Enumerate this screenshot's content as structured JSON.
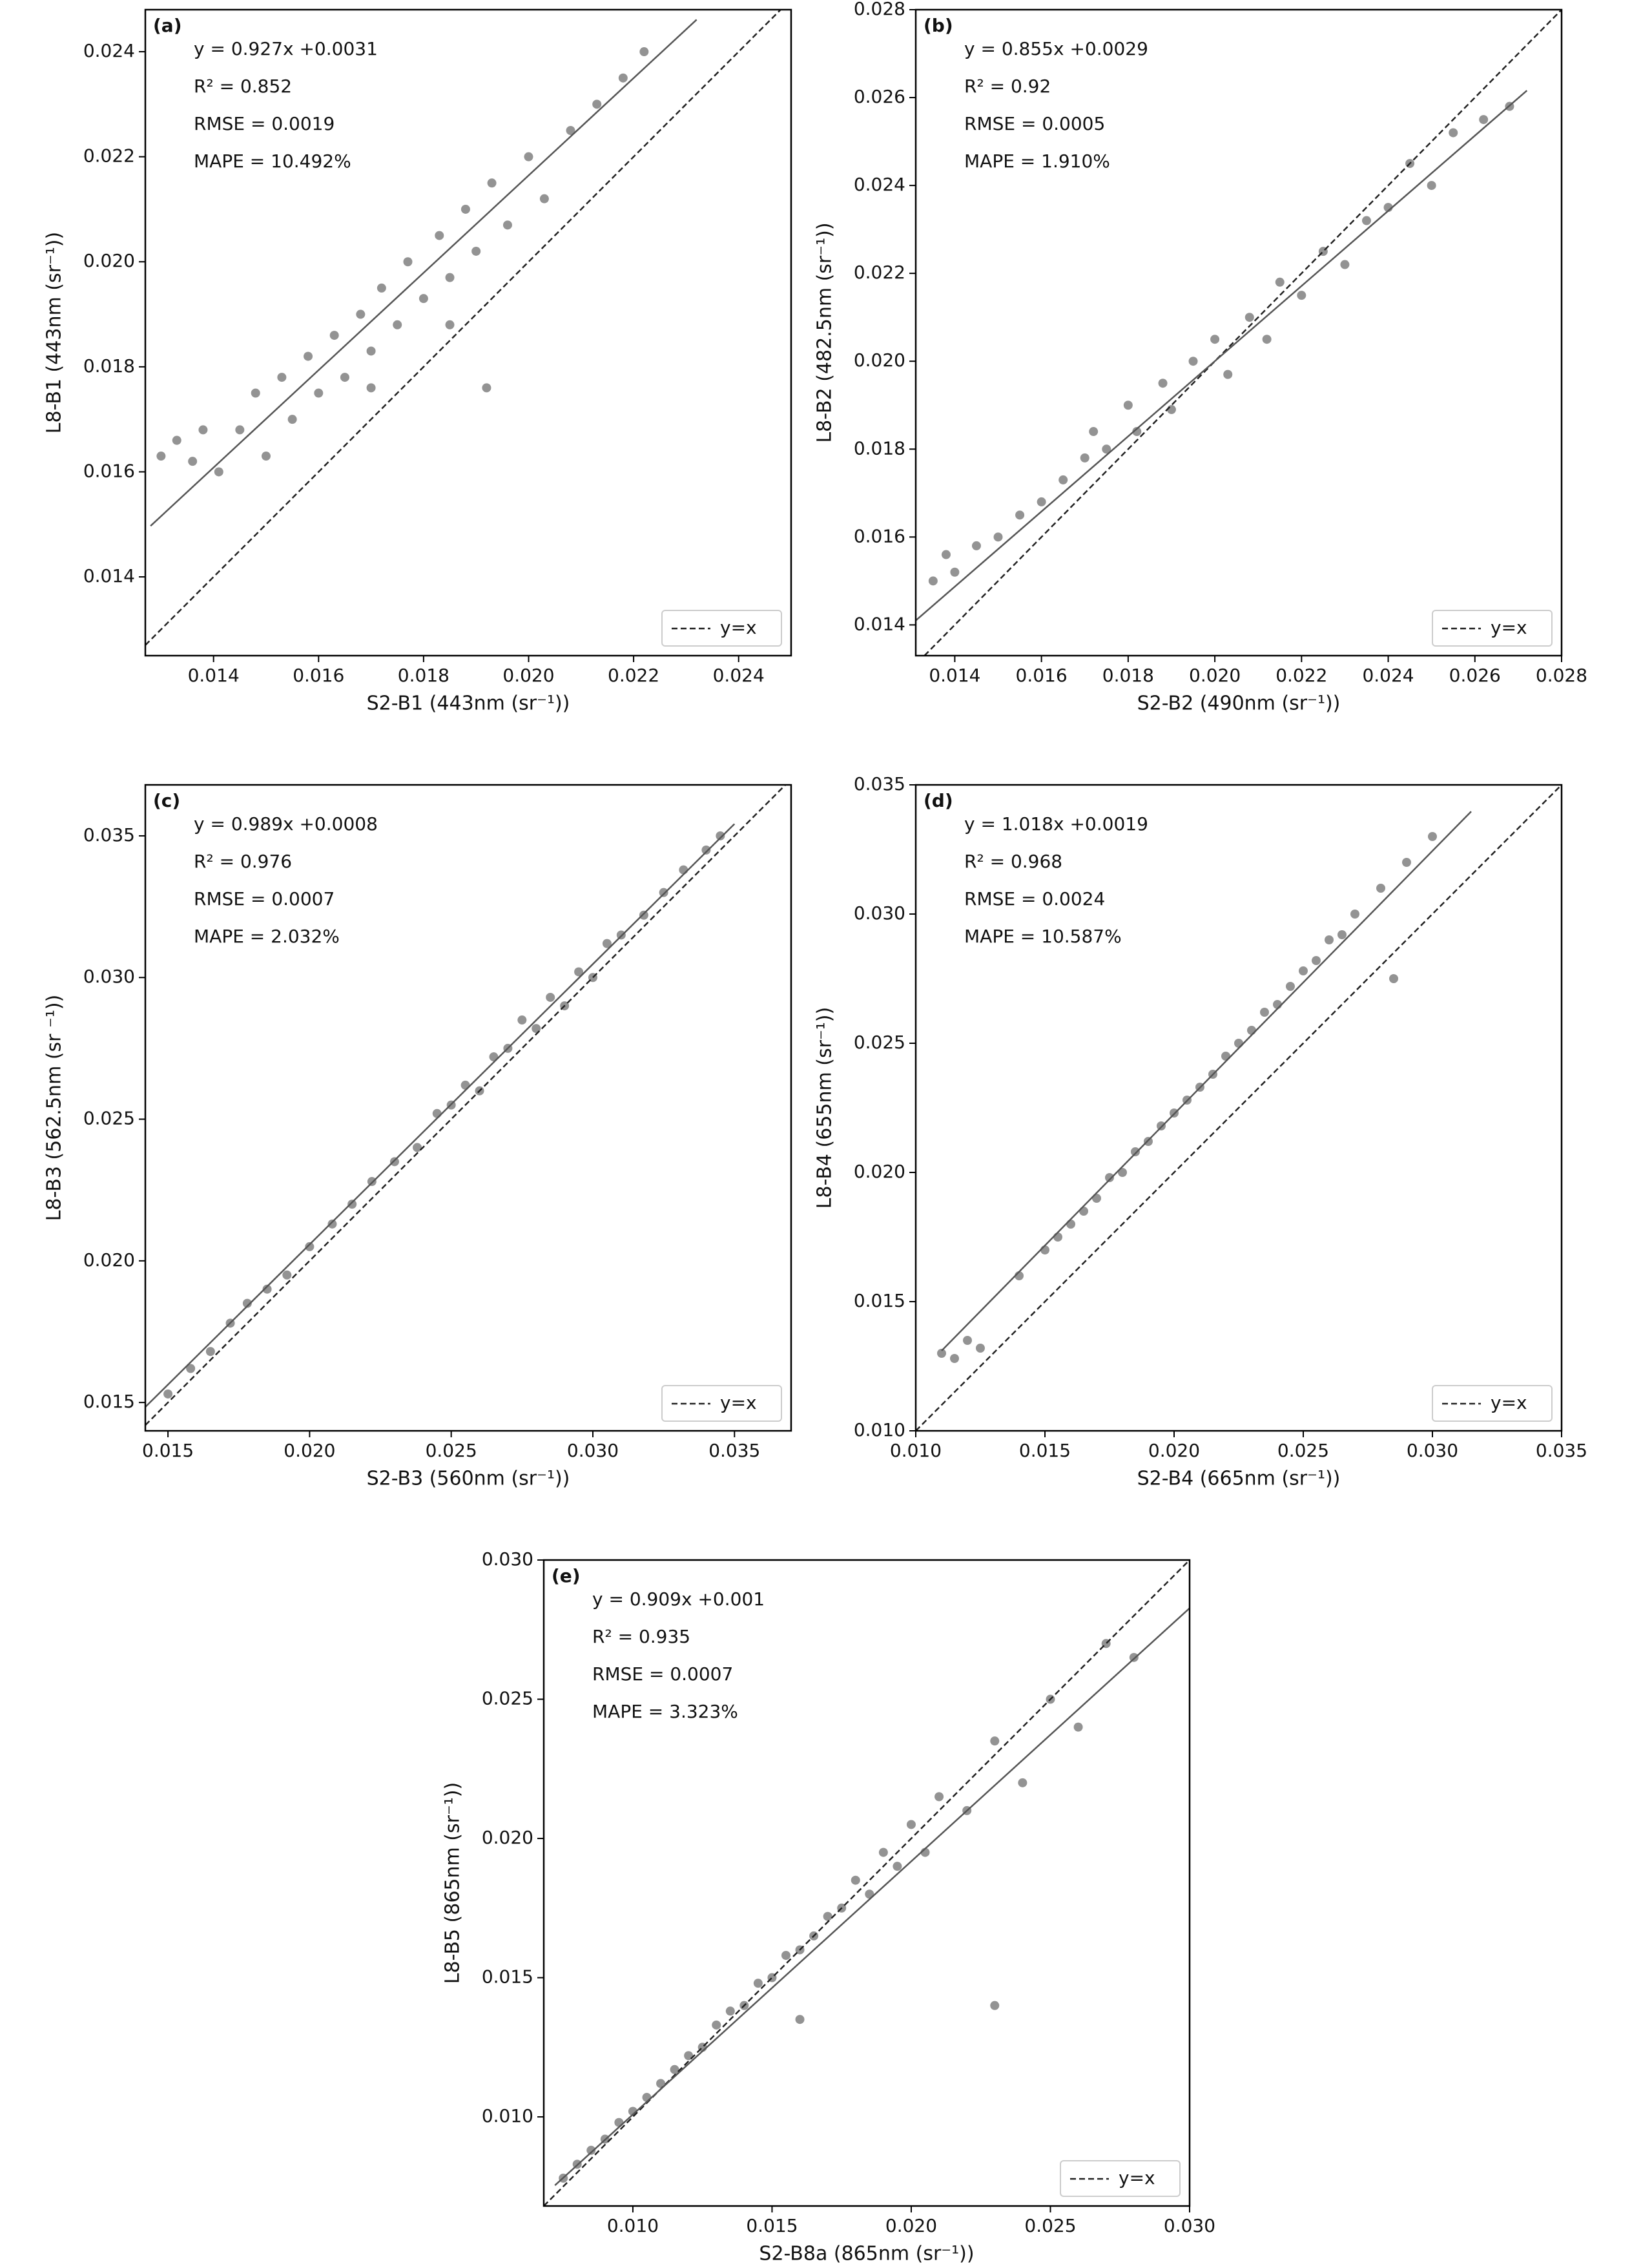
{
  "chart_data": [
    {
      "type": "scatter",
      "label": "(a)",
      "annotations": [
        "y = 0.927x +0.0031",
        "R² = 0.852",
        "RMSE = 0.0019",
        "MAPE = 10.492%"
      ],
      "xlabel": "S2-B1 (443nm (sr⁻¹))",
      "ylabel": "L8-B1 (443nm (sr⁻¹))",
      "xlim": [
        0.0127,
        0.025
      ],
      "ylim": [
        0.0125,
        0.0248
      ],
      "xticks": [
        0.014,
        0.016,
        0.018,
        {
          "value": 0.02,
          "label": "0.020"
        },
        0.022,
        0.024
      ],
      "yticks": [
        0.014,
        0.016,
        0.018,
        {
          "value": 0.02,
          "label": "0.020"
        },
        0.022,
        0.024
      ],
      "color": "#808080",
      "legend": "lower right",
      "x": [
        0.013,
        0.0133,
        0.0136,
        0.0138,
        0.0141,
        0.0145,
        0.0148,
        0.015,
        0.0153,
        0.0155,
        0.0158,
        0.016,
        0.0163,
        0.0165,
        0.0168,
        0.017,
        0.0172,
        0.0175,
        0.0177,
        0.018,
        0.0183,
        0.0185,
        0.0188,
        0.019,
        0.0193,
        0.0196,
        0.02,
        0.0203,
        0.0208,
        0.0213,
        0.0218,
        0.0222,
        0.017,
        0.0185,
        0.0192
      ],
      "y": [
        0.0163,
        0.0166,
        0.0162,
        0.0168,
        0.016,
        0.0168,
        0.0175,
        0.0163,
        0.0178,
        0.017,
        0.0182,
        0.0175,
        0.0186,
        0.0178,
        0.019,
        0.0183,
        0.0195,
        0.0188,
        0.02,
        0.0193,
        0.0205,
        0.0197,
        0.021,
        0.0202,
        0.0215,
        0.0207,
        0.022,
        0.0212,
        0.0225,
        0.023,
        0.0235,
        0.024,
        0.0176,
        0.0188,
        0.0176
      ],
      "fit": {
        "x": [
          0.0128,
          0.0232
        ],
        "y": [
          0.01497,
          0.02461
        ]
      },
      "identity": {
        "name": "y=x",
        "x": [
          0.0127,
          0.0248
        ],
        "y": [
          0.0127,
          0.0248
        ]
      }
    },
    {
      "type": "scatter",
      "label": "(b)",
      "annotations": [
        "y = 0.855x +0.0029",
        "R² = 0.92",
        "RMSE = 0.0005",
        "MAPE = 1.910%"
      ],
      "xlabel": "S2-B2 (490nm (sr⁻¹))",
      "ylabel": "L8-B2 (482.5nm (sr⁻¹))",
      "xlim": [
        0.0131,
        0.028
      ],
      "ylim": [
        0.0133,
        0.028
      ],
      "xticks": [
        0.014,
        0.016,
        0.018,
        {
          "value": 0.02,
          "label": "0.020"
        },
        0.022,
        0.024,
        0.026,
        0.028
      ],
      "yticks": [
        0.014,
        0.016,
        0.018,
        {
          "value": 0.02,
          "label": "0.020"
        },
        0.022,
        0.024,
        0.026,
        0.028
      ],
      "color": "#808080",
      "legend": "lower right",
      "x": [
        0.0135,
        0.0138,
        0.014,
        0.0145,
        0.015,
        0.0155,
        0.016,
        0.0165,
        0.017,
        0.0172,
        0.0175,
        0.018,
        0.0182,
        0.0188,
        0.019,
        0.0195,
        0.02,
        0.0203,
        0.0208,
        0.0212,
        0.0215,
        0.022,
        0.0225,
        0.023,
        0.0235,
        0.024,
        0.0245,
        0.025,
        0.0255,
        0.0262,
        0.0268
      ],
      "y": [
        0.015,
        0.0156,
        0.0152,
        0.0158,
        0.016,
        0.0165,
        0.0168,
        0.0173,
        0.0178,
        0.0184,
        0.018,
        0.019,
        0.0184,
        0.0195,
        0.0189,
        0.02,
        0.0205,
        0.0197,
        0.021,
        0.0205,
        0.0218,
        0.0215,
        0.0225,
        0.0222,
        0.0232,
        0.0235,
        0.0245,
        0.024,
        0.0252,
        0.0255,
        0.0258
      ],
      "fit": {
        "x": [
          0.0131,
          0.0272
        ],
        "y": [
          0.0141,
          0.02616
        ]
      },
      "identity": {
        "name": "y=x",
        "x": [
          0.0133,
          0.028
        ],
        "y": [
          0.0133,
          0.028
        ]
      }
    },
    {
      "type": "scatter",
      "label": "(c)",
      "annotations": [
        "y = 0.989x +0.0008",
        "R² = 0.976",
        "RMSE = 0.0007",
        "MAPE = 2.032%"
      ],
      "xlabel": "S2-B3 (560nm (sr⁻¹))",
      "ylabel": "L8-B3 (562.5nm (sr ⁻¹))",
      "xlim": [
        0.0142,
        0.037
      ],
      "ylim": [
        0.014,
        0.0368
      ],
      "xticks": [
        0.015,
        {
          "value": 0.02,
          "label": "0.020"
        },
        0.025,
        {
          "value": 0.03,
          "label": "0.030"
        },
        0.035
      ],
      "yticks": [
        0.015,
        {
          "value": 0.02,
          "label": "0.020"
        },
        0.025,
        {
          "value": 0.03,
          "label": "0.030"
        },
        0.035
      ],
      "color": "#808080",
      "legend": "lower right",
      "x": [
        0.015,
        0.0158,
        0.0165,
        0.0172,
        0.0178,
        0.0185,
        0.0192,
        0.02,
        0.0208,
        0.0215,
        0.0222,
        0.023,
        0.0238,
        0.0245,
        0.025,
        0.0255,
        0.026,
        0.0265,
        0.027,
        0.0275,
        0.028,
        0.0285,
        0.029,
        0.0295,
        0.03,
        0.0305,
        0.031,
        0.0318,
        0.0325,
        0.0332,
        0.034,
        0.0345
      ],
      "y": [
        0.0153,
        0.0162,
        0.0168,
        0.0178,
        0.0185,
        0.019,
        0.0195,
        0.0205,
        0.0213,
        0.022,
        0.0228,
        0.0235,
        0.024,
        0.0252,
        0.0255,
        0.0262,
        0.026,
        0.0272,
        0.0275,
        0.0285,
        0.0282,
        0.0293,
        0.029,
        0.0302,
        0.03,
        0.0312,
        0.0315,
        0.0322,
        0.033,
        0.0338,
        0.0345,
        0.035
      ],
      "fit": {
        "x": [
          0.0142,
          0.035
        ],
        "y": [
          0.01484,
          0.03542
        ]
      },
      "identity": {
        "name": "y=x",
        "x": [
          0.0142,
          0.0368
        ],
        "y": [
          0.0142,
          0.0368
        ]
      }
    },
    {
      "type": "scatter",
      "label": "(d)",
      "annotations": [
        "y = 1.018x +0.0019",
        "R² = 0.968",
        "RMSE = 0.0024",
        "MAPE = 10.587%"
      ],
      "xlabel": "S2-B4 (665nm (sr⁻¹))",
      "ylabel": "L8-B4 (655nm (sr⁻¹))",
      "xlim": [
        0.01,
        0.035
      ],
      "ylim": [
        0.01,
        0.035
      ],
      "xticks": [
        {
          "value": 0.01,
          "label": "0.010"
        },
        0.015,
        {
          "value": 0.02,
          "label": "0.020"
        },
        0.025,
        {
          "value": 0.03,
          "label": "0.030"
        },
        0.035
      ],
      "yticks": [
        {
          "value": 0.01,
          "label": "0.010"
        },
        0.015,
        {
          "value": 0.02,
          "label": "0.020"
        },
        0.025,
        {
          "value": 0.03,
          "label": "0.030"
        },
        0.035
      ],
      "color": "#808080",
      "legend": "lower right",
      "x": [
        0.011,
        0.0115,
        0.012,
        0.0125,
        0.014,
        0.015,
        0.0155,
        0.016,
        0.0165,
        0.017,
        0.0175,
        0.018,
        0.0185,
        0.019,
        0.0195,
        0.02,
        0.0205,
        0.021,
        0.0215,
        0.022,
        0.0225,
        0.023,
        0.0235,
        0.024,
        0.0245,
        0.025,
        0.0255,
        0.026,
        0.0265,
        0.027,
        0.028,
        0.029,
        0.03,
        0.0285
      ],
      "y": [
        0.013,
        0.0128,
        0.0135,
        0.0132,
        0.016,
        0.017,
        0.0175,
        0.018,
        0.0185,
        0.019,
        0.0198,
        0.02,
        0.0208,
        0.0212,
        0.0218,
        0.0223,
        0.0228,
        0.0233,
        0.0238,
        0.0245,
        0.025,
        0.0255,
        0.0262,
        0.0265,
        0.0272,
        0.0278,
        0.0282,
        0.029,
        0.0292,
        0.03,
        0.031,
        0.032,
        0.033,
        0.0275
      ],
      "fit": {
        "x": [
          0.011,
          0.0315
        ],
        "y": [
          0.0131,
          0.03397
        ]
      },
      "identity": {
        "name": "y=x",
        "x": [
          0.01,
          0.035
        ],
        "y": [
          0.01,
          0.035
        ]
      }
    },
    {
      "type": "scatter",
      "label": "(e)",
      "annotations": [
        "y = 0.909x +0.001",
        "R² = 0.935",
        "RMSE = 0.0007",
        "MAPE = 3.323%"
      ],
      "xlabel": "S2-B8a (865nm (sr⁻¹))",
      "ylabel": "L8-B5 (865nm (sr⁻¹))",
      "xlim": [
        0.0068,
        0.03
      ],
      "ylim": [
        0.0068,
        0.03
      ],
      "xticks": [
        {
          "value": 0.01,
          "label": "0.010"
        },
        0.015,
        {
          "value": 0.02,
          "label": "0.020"
        },
        0.025,
        {
          "value": 0.03,
          "label": "0.030"
        }
      ],
      "yticks": [
        {
          "value": 0.01,
          "label": "0.010"
        },
        0.015,
        {
          "value": 0.02,
          "label": "0.020"
        },
        0.025,
        {
          "value": 0.03,
          "label": "0.030"
        }
      ],
      "color": "#808080",
      "legend": "lower right",
      "x": [
        0.0075,
        0.008,
        0.0085,
        0.009,
        0.0095,
        0.01,
        0.0105,
        0.011,
        0.0115,
        0.012,
        0.0125,
        0.013,
        0.0135,
        0.014,
        0.0145,
        0.015,
        0.0155,
        0.016,
        0.0165,
        0.017,
        0.0175,
        0.018,
        0.0185,
        0.019,
        0.0195,
        0.02,
        0.0205,
        0.021,
        0.022,
        0.023,
        0.024,
        0.025,
        0.026,
        0.027,
        0.028,
        0.016,
        0.023
      ],
      "y": [
        0.0078,
        0.0083,
        0.0088,
        0.0092,
        0.0098,
        0.0102,
        0.0107,
        0.0112,
        0.0117,
        0.0122,
        0.0125,
        0.0133,
        0.0138,
        0.014,
        0.0148,
        0.015,
        0.0158,
        0.016,
        0.0165,
        0.0172,
        0.0175,
        0.0185,
        0.018,
        0.0195,
        0.019,
        0.0205,
        0.0195,
        0.0215,
        0.021,
        0.0235,
        0.022,
        0.025,
        0.024,
        0.027,
        0.0265,
        0.0135,
        0.014
      ],
      "fit": {
        "x": [
          0.0072,
          0.03
        ],
        "y": [
          0.00754,
          0.02827
        ]
      },
      "identity": {
        "name": "y=x",
        "x": [
          0.0068,
          0.03
        ],
        "y": [
          0.0068,
          0.03
        ]
      }
    }
  ]
}
